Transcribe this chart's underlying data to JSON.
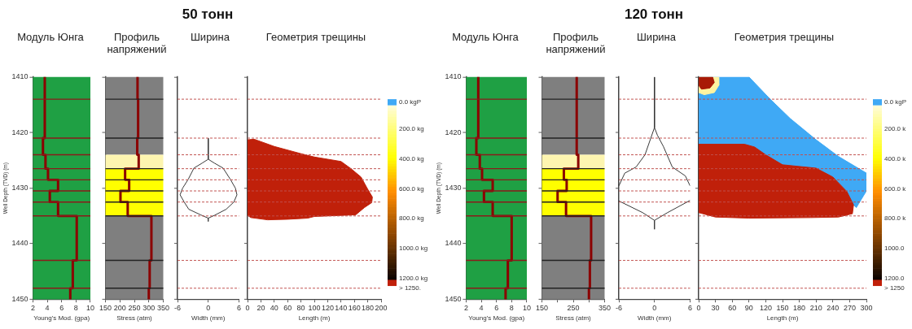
{
  "chart_data": [
    {
      "type": "line",
      "title": "Модуль Юнга",
      "xlabel": "Young's Mod. (gpa)",
      "ylabel": "Well Depth (TVD) (m)",
      "xlim": [
        2,
        10
      ],
      "xticks": [
        2,
        4,
        6,
        8,
        10
      ],
      "ylim": [
        1450,
        1410
      ],
      "yticks": [
        1410,
        1420,
        1430,
        1440,
        1450
      ],
      "grid": false,
      "legend": false,
      "series": [
        {
          "color": "#8b0000",
          "x": [
            3.65,
            3.65,
            3.4,
            3.4,
            3.75,
            3.75,
            4.1,
            4.1,
            5.5,
            5.5,
            4.35,
            4.35,
            5.5,
            5.5,
            8.1,
            8.1,
            7.55,
            7.55,
            7.2,
            7.2
          ],
          "values": [
            1410,
            1421,
            1421,
            1424,
            1424,
            1426.5,
            1426.5,
            1428.5,
            1428.5,
            1430.5,
            1430.5,
            1432.5,
            1432.5,
            1435,
            1435,
            1443,
            1443,
            1448,
            1448,
            1450
          ]
        }
      ],
      "bands": [
        {
          "axis": "y",
          "from": 1410,
          "to": 1450,
          "color": "#1fa044"
        }
      ],
      "ref_lines": [
        {
          "axis": "y",
          "value": 1414,
          "color": "#8b1a1a",
          "line_style": "solid"
        },
        {
          "axis": "y",
          "value": 1421,
          "color": "#8b1a1a",
          "line_style": "solid"
        },
        {
          "axis": "y",
          "value": 1424,
          "color": "#8b1a1a",
          "line_style": "solid"
        },
        {
          "axis": "y",
          "value": 1426.5,
          "color": "#8b1a1a",
          "line_style": "solid"
        },
        {
          "axis": "y",
          "value": 1428.5,
          "color": "#8b1a1a",
          "line_style": "solid"
        },
        {
          "axis": "y",
          "value": 1430.5,
          "color": "#8b1a1a",
          "line_style": "solid"
        },
        {
          "axis": "y",
          "value": 1432.5,
          "color": "#8b1a1a",
          "line_style": "solid"
        },
        {
          "axis": "y",
          "value": 1435,
          "color": "#8b1a1a",
          "line_style": "solid"
        },
        {
          "axis": "y",
          "value": 1443,
          "color": "#8b1a1a",
          "line_style": "solid"
        },
        {
          "axis": "y",
          "value": 1448,
          "color": "#8b1a1a",
          "line_style": "solid"
        }
      ]
    },
    {
      "type": "line",
      "title": "Профиль напряжений",
      "xlabel": "Stress (atm)",
      "xlim": [
        150,
        350
      ],
      "xticks": [
        150,
        200,
        250,
        300,
        350
      ],
      "ylim": [
        1450,
        1410
      ],
      "yticks": [
        1410,
        1420,
        1430,
        1440,
        1450
      ],
      "tick_labels": "x",
      "grid": false,
      "legend": false,
      "series": [
        {
          "color": "#8b0000",
          "x": [
            261,
            261,
            263,
            263,
            260,
            260,
            265,
            265,
            218,
            218,
            232,
            232,
            202,
            202,
            227,
            227,
            309,
            309,
            303,
            303,
            300,
            300
          ],
          "values": [
            1410,
            1414,
            1414,
            1421,
            1421,
            1424,
            1424,
            1426.5,
            1426.5,
            1428.5,
            1428.5,
            1430.5,
            1430.5,
            1432.5,
            1432.5,
            1435,
            1435,
            1443,
            1443,
            1448,
            1448,
            1450
          ]
        }
      ],
      "bands": [
        {
          "axis": "y",
          "from": 1410,
          "to": 1424,
          "color": "#7f7f7f"
        },
        {
          "axis": "y",
          "from": 1424,
          "to": 1426.5,
          "color": "#fdf5b0"
        },
        {
          "axis": "y",
          "from": 1426.5,
          "to": 1435,
          "color": "#ffff00"
        },
        {
          "axis": "y",
          "from": 1435,
          "to": 1450,
          "color": "#7f7f7f"
        }
      ],
      "ref_lines": [
        {
          "axis": "y",
          "value": 1414,
          "color": "#222222",
          "line_style": "solid"
        },
        {
          "axis": "y",
          "value": 1421,
          "color": "#222222",
          "line_style": "solid"
        },
        {
          "axis": "y",
          "value": 1426.5,
          "color": "#222222",
          "line_style": "solid"
        },
        {
          "axis": "y",
          "value": 1428.5,
          "color": "#222222",
          "line_style": "solid"
        },
        {
          "axis": "y",
          "value": 1430.5,
          "color": "#222222",
          "line_style": "solid"
        },
        {
          "axis": "y",
          "value": 1432.5,
          "color": "#222222",
          "line_style": "solid"
        },
        {
          "axis": "y",
          "value": 1435,
          "color": "#222222",
          "line_style": "solid"
        },
        {
          "axis": "y",
          "value": 1443,
          "color": "#222222",
          "line_style": "solid"
        },
        {
          "axis": "y",
          "value": 1448,
          "color": "#222222",
          "line_style": "solid"
        }
      ]
    },
    {
      "type": "line",
      "subtitle": "50 тонн",
      "title": "Ширина",
      "xlabel": "Width (mm)",
      "xlim": [
        -6,
        6
      ],
      "xticks": [
        -6,
        0,
        6
      ],
      "ylim": [
        1450,
        1410
      ],
      "yticks": [
        1410,
        1420,
        1430,
        1440,
        1450
      ],
      "tick_labels": "x",
      "grid": false,
      "legend": false,
      "series": [
        {
          "color": "#333333",
          "x": [
            0,
            0,
            1.2,
            2.9,
            4.3,
            5.3,
            5.6,
            5.0,
            3.5,
            1.2,
            0,
            0,
            0,
            -1.5,
            -3.8,
            -4.7,
            -5.5,
            -5.0,
            -3.9,
            -2.8,
            -1.2,
            0
          ],
          "values": [
            1421,
            1424.8,
            1425.5,
            1426.4,
            1428.4,
            1430,
            1431.2,
            1432.5,
            1433.8,
            1434.9,
            1435.4,
            1436,
            1435.4,
            1434.8,
            1433.8,
            1432.5,
            1431.2,
            1430,
            1428.4,
            1426.4,
            1425.5,
            1424.8
          ]
        }
      ],
      "ref_lines": [
        {
          "axis": "y",
          "value": 1414,
          "color": "#c0504d",
          "line_style": "dashed"
        },
        {
          "axis": "y",
          "value": 1421,
          "color": "#c0504d",
          "line_style": "dashed"
        },
        {
          "axis": "y",
          "value": 1424,
          "color": "#c0504d",
          "line_style": "dashed"
        },
        {
          "axis": "y",
          "value": 1426.5,
          "color": "#c0504d",
          "line_style": "dashed"
        },
        {
          "axis": "y",
          "value": 1428.5,
          "color": "#c0504d",
          "line_style": "dashed"
        },
        {
          "axis": "y",
          "value": 1430.5,
          "color": "#c0504d",
          "line_style": "dashed"
        },
        {
          "axis": "y",
          "value": 1432.5,
          "color": "#c0504d",
          "line_style": "dashed"
        },
        {
          "axis": "y",
          "value": 1435,
          "color": "#c0504d",
          "line_style": "dashed"
        },
        {
          "axis": "y",
          "value": 1443,
          "color": "#c0504d",
          "line_style": "dashed"
        },
        {
          "axis": "y",
          "value": 1448,
          "color": "#c0504d",
          "line_style": "dashed"
        }
      ]
    },
    {
      "type": "area",
      "title": "Геометрия трещины",
      "xlabel": "Length (m)",
      "xlim": [
        0,
        200
      ],
      "xticks": [
        0,
        20,
        40,
        60,
        80,
        100,
        120,
        140,
        160,
        180,
        200
      ],
      "ylim": [
        1450,
        1410
      ],
      "yticks": [
        1410,
        1420,
        1430,
        1440,
        1450
      ],
      "tick_labels": "x",
      "grid": false,
      "legend": false,
      "clim": [
        0,
        1250
      ],
      "cticks": [
        {
          "value": 0,
          "label": "0.0 kgP"
        },
        {
          "value": 200,
          "label": "200.0 kg"
        },
        {
          "value": 400,
          "label": "400.0 kg"
        },
        {
          "value": 600,
          "label": "600.0 kg"
        },
        {
          "value": 800,
          "label": "800.0 kg"
        },
        {
          "value": 1000,
          "label": "1000.0 kg"
        },
        {
          "value": 1200,
          "label": "1200.0 kg"
        },
        {
          "value": 1250,
          "label": "> 1250."
        }
      ],
      "series": [
        {
          "color": "#c0200a",
          "x": [
            0,
            10,
            40,
            80,
            100,
            120,
            140,
            155,
            170,
            180,
            187,
            186,
            175,
            162,
            100,
            90,
            60,
            30,
            5,
            0
          ],
          "values": [
            1421.3,
            1421.2,
            1422.5,
            1423.8,
            1424.4,
            1424.8,
            1425.2,
            1426.5,
            1428,
            1430.2,
            1431.6,
            1432.6,
            1433.5,
            1434.8,
            1435.1,
            1435.4,
            1435.6,
            1435.7,
            1435.3,
            1434.9
          ]
        }
      ],
      "ref_lines": [
        {
          "axis": "y",
          "value": 1414,
          "color": "#c0504d",
          "line_style": "dashed"
        },
        {
          "axis": "y",
          "value": 1421,
          "color": "#c0504d",
          "line_style": "dashed"
        },
        {
          "axis": "y",
          "value": 1424,
          "color": "#c0504d",
          "line_style": "dashed"
        },
        {
          "axis": "y",
          "value": 1426.5,
          "color": "#c0504d",
          "line_style": "dashed"
        },
        {
          "axis": "y",
          "value": 1428.5,
          "color": "#c0504d",
          "line_style": "dashed"
        },
        {
          "axis": "y",
          "value": 1430.5,
          "color": "#c0504d",
          "line_style": "dashed"
        },
        {
          "axis": "y",
          "value": 1432.5,
          "color": "#c0504d",
          "line_style": "dashed"
        },
        {
          "axis": "y",
          "value": 1435,
          "color": "#c0504d",
          "line_style": "dashed"
        },
        {
          "axis": "y",
          "value": 1443,
          "color": "#c0504d",
          "line_style": "dashed"
        },
        {
          "axis": "y",
          "value": 1448,
          "color": "#c0504d",
          "line_style": "dashed"
        }
      ]
    },
    {
      "type": "line",
      "title": "Модуль Юнга",
      "xlabel": "Young's Mod. (gpa)",
      "ylabel": "Well Depth (TVD) (m)",
      "xlim": [
        2,
        10
      ],
      "xticks": [
        2,
        4,
        6,
        8,
        10
      ],
      "ylim": [
        1450,
        1410
      ],
      "yticks": [
        1410,
        1420,
        1430,
        1440,
        1450
      ],
      "grid": false,
      "legend": false,
      "series": [
        {
          "color": "#8b0000",
          "x": [
            3.6,
            3.6,
            3.35,
            3.35,
            3.8,
            3.8,
            4.1,
            4.1,
            5.5,
            5.5,
            4.35,
            4.35,
            5.5,
            5.5,
            8.0,
            8.0,
            7.5,
            7.5,
            7.2,
            7.2
          ],
          "values": [
            1410,
            1421,
            1421,
            1424,
            1424,
            1426.5,
            1426.5,
            1428.5,
            1428.5,
            1430.5,
            1430.5,
            1432.5,
            1432.5,
            1435,
            1435,
            1443,
            1443,
            1448,
            1448,
            1450
          ]
        }
      ],
      "bands": [
        {
          "axis": "y",
          "from": 1410,
          "to": 1450,
          "color": "#1fa044"
        }
      ],
      "ref_lines": [
        {
          "axis": "y",
          "value": 1414,
          "color": "#8b1a1a",
          "line_style": "solid"
        },
        {
          "axis": "y",
          "value": 1421,
          "color": "#8b1a1a",
          "line_style": "solid"
        },
        {
          "axis": "y",
          "value": 1424,
          "color": "#8b1a1a",
          "line_style": "solid"
        },
        {
          "axis": "y",
          "value": 1426.5,
          "color": "#8b1a1a",
          "line_style": "solid"
        },
        {
          "axis": "y",
          "value": 1428.5,
          "color": "#8b1a1a",
          "line_style": "solid"
        },
        {
          "axis": "y",
          "value": 1430.5,
          "color": "#8b1a1a",
          "line_style": "solid"
        },
        {
          "axis": "y",
          "value": 1432.5,
          "color": "#8b1a1a",
          "line_style": "solid"
        },
        {
          "axis": "y",
          "value": 1435,
          "color": "#8b1a1a",
          "line_style": "solid"
        },
        {
          "axis": "y",
          "value": 1443,
          "color": "#8b1a1a",
          "line_style": "solid"
        },
        {
          "axis": "y",
          "value": 1448,
          "color": "#8b1a1a",
          "line_style": "solid"
        }
      ]
    },
    {
      "type": "line",
      "title": "Профиль напряжений",
      "xlabel": "Stress (atm)",
      "xlim": [
        150,
        350
      ],
      "xticks": [
        150,
        {
          "value": 200,
          "label": null
        },
        250,
        {
          "value": 300,
          "label": null
        },
        350
      ],
      "ylim": [
        1450,
        1410
      ],
      "yticks": [
        1410,
        1420,
        1430,
        1440,
        1450
      ],
      "tick_labels": "x",
      "grid": false,
      "legend": false,
      "series": [
        {
          "color": "#8b0000",
          "x": [
            261,
            261,
            266,
            266,
            220,
            220,
            229,
            229,
            200,
            200,
            227,
            227,
            307,
            307,
            303,
            303,
            300,
            300
          ],
          "values": [
            1410,
            1424,
            1424,
            1426.5,
            1426.5,
            1428.5,
            1428.5,
            1430.5,
            1430.5,
            1432.5,
            1432.5,
            1435,
            1435,
            1443,
            1443,
            1448,
            1448,
            1450
          ]
        }
      ],
      "bands": [
        {
          "axis": "y",
          "from": 1410,
          "to": 1424,
          "color": "#7f7f7f"
        },
        {
          "axis": "y",
          "from": 1424,
          "to": 1426.5,
          "color": "#fdf5b0"
        },
        {
          "axis": "y",
          "from": 1426.5,
          "to": 1435,
          "color": "#ffff00"
        },
        {
          "axis": "y",
          "from": 1435,
          "to": 1450,
          "color": "#7f7f7f"
        }
      ],
      "ref_lines": [
        {
          "axis": "y",
          "value": 1414,
          "color": "#222222",
          "line_style": "solid"
        },
        {
          "axis": "y",
          "value": 1421,
          "color": "#222222",
          "line_style": "solid"
        },
        {
          "axis": "y",
          "value": 1426.5,
          "color": "#222222",
          "line_style": "solid"
        },
        {
          "axis": "y",
          "value": 1428.5,
          "color": "#222222",
          "line_style": "solid"
        },
        {
          "axis": "y",
          "value": 1430.5,
          "color": "#222222",
          "line_style": "solid"
        },
        {
          "axis": "y",
          "value": 1432.5,
          "color": "#222222",
          "line_style": "solid"
        },
        {
          "axis": "y",
          "value": 1435,
          "color": "#222222",
          "line_style": "solid"
        },
        {
          "axis": "y",
          "value": 1443,
          "color": "#222222",
          "line_style": "solid"
        },
        {
          "axis": "y",
          "value": 1448,
          "color": "#222222",
          "line_style": "solid"
        }
      ]
    },
    {
      "type": "line",
      "subtitle": "120 тонн",
      "title": "Ширина",
      "xlabel": "Width (mm)",
      "xlim": [
        -6,
        6
      ],
      "xticks": [
        -6,
        0,
        6
      ],
      "ylim": [
        1450,
        1410
      ],
      "yticks": [
        1410,
        1420,
        1430,
        1440,
        1450
      ],
      "tick_labels": "x",
      "grid": false,
      "legend": false,
      "series": [
        {
          "color": "#333333",
          "x": [
            0,
            0,
            0.5,
            1.5,
            3,
            5.2,
            6
          ],
          "values": [
            1410,
            1419.1,
            1420.5,
            1422.5,
            1426.2,
            1427.8,
            1429.6
          ]
        },
        {
          "color": "#333333",
          "x": [
            6,
            2.2,
            0,
            0,
            0,
            -2,
            -6
          ],
          "values": [
            1432.2,
            1434.4,
            1435.8,
            1437.4,
            1435.8,
            1434.4,
            1432.3
          ]
        },
        {
          "color": "#333333",
          "x": [
            -6,
            -5,
            -3.1,
            -1.6,
            0
          ],
          "values": [
            1429.6,
            1427.3,
            1426.2,
            1424,
            1419.1
          ]
        }
      ],
      "ref_lines": [
        {
          "axis": "y",
          "value": 1414,
          "color": "#c0504d",
          "line_style": "dashed"
        },
        {
          "axis": "y",
          "value": 1421,
          "color": "#c0504d",
          "line_style": "dashed"
        },
        {
          "axis": "y",
          "value": 1424,
          "color": "#c0504d",
          "line_style": "dashed"
        },
        {
          "axis": "y",
          "value": 1426.5,
          "color": "#c0504d",
          "line_style": "dashed"
        },
        {
          "axis": "y",
          "value": 1428.5,
          "color": "#c0504d",
          "line_style": "dashed"
        },
        {
          "axis": "y",
          "value": 1430.5,
          "color": "#c0504d",
          "line_style": "dashed"
        },
        {
          "axis": "y",
          "value": 1432.5,
          "color": "#c0504d",
          "line_style": "dashed"
        },
        {
          "axis": "y",
          "value": 1435,
          "color": "#c0504d",
          "line_style": "dashed"
        },
        {
          "axis": "y",
          "value": 1443,
          "color": "#c0504d",
          "line_style": "dashed"
        },
        {
          "axis": "y",
          "value": 1448,
          "color": "#c0504d",
          "line_style": "dashed"
        }
      ]
    },
    {
      "type": "area",
      "title": "Геометрия трещины",
      "xlabel": "Length (m)",
      "xlim": [
        0,
        300
      ],
      "xticks": [
        0,
        30,
        60,
        90,
        120,
        150,
        180,
        210,
        240,
        270,
        300
      ],
      "ylim": [
        1450,
        1410
      ],
      "yticks": [
        1410,
        1420,
        1430,
        1440,
        1450
      ],
      "tick_labels": "x",
      "grid": false,
      "legend": false,
      "clim": [
        0,
        1250
      ],
      "cticks": [
        {
          "value": 0,
          "label": "0.0 kgP"
        },
        {
          "value": 200,
          "label": "200.0 k"
        },
        {
          "value": 400,
          "label": "400.0 k"
        },
        {
          "value": 600,
          "label": "600.0 k"
        },
        {
          "value": 800,
          "label": "800.0 k"
        },
        {
          "value": 1000,
          "label": "1000.0"
        },
        {
          "value": 1200,
          "label": "1200.0"
        },
        {
          "value": 1250,
          "label": "> 1250"
        }
      ],
      "series": [
        {
          "color": "#3fa9f5",
          "x": [
            0,
            90,
            128,
            164,
            210,
            250,
            300,
            300,
            282,
            277,
            265,
            240,
            210,
            150,
            120,
            100,
            82,
            0
          ],
          "values": [
            1410,
            1410,
            1414,
            1417.5,
            1421.3,
            1424.3,
            1427.3,
            1430.5,
            1433.5,
            1433,
            1430.6,
            1428,
            1426.4,
            1425.8,
            1424,
            1422.6,
            1422.1,
            1422.1
          ]
        },
        {
          "color": "#c0200a",
          "x": [
            0,
            82,
            100,
            120,
            150,
            210,
            240,
            265,
            277,
            275,
            250,
            200,
            90,
            30,
            0
          ],
          "values": [
            1422.1,
            1422.1,
            1422.6,
            1424,
            1425.8,
            1426.4,
            1428,
            1430.6,
            1433,
            1434.6,
            1435.2,
            1435.3,
            1435.4,
            1435.2,
            1434.4
          ]
        },
        {
          "color": "#fff3a0",
          "x": [
            0,
            35,
            36,
            28,
            10,
            0
          ],
          "values": [
            1410,
            1410,
            1411.5,
            1412.8,
            1413.2,
            1412.8
          ]
        },
        {
          "color": "#a81a06",
          "x": [
            0,
            25,
            28,
            20,
            5,
            0
          ],
          "values": [
            1410,
            1410,
            1411,
            1412,
            1412.2,
            1411.5
          ]
        }
      ],
      "ref_lines": [
        {
          "axis": "y",
          "value": 1414,
          "color": "#c0504d",
          "line_style": "dashed"
        },
        {
          "axis": "y",
          "value": 1421,
          "color": "#c0504d",
          "line_style": "dashed"
        },
        {
          "axis": "y",
          "value": 1424,
          "color": "#c0504d",
          "line_style": "dashed"
        },
        {
          "axis": "y",
          "value": 1426.5,
          "color": "#c0504d",
          "line_style": "dashed"
        },
        {
          "axis": "y",
          "value": 1428.5,
          "color": "#c0504d",
          "line_style": "dashed"
        },
        {
          "axis": "y",
          "value": 1430.5,
          "color": "#c0504d",
          "line_style": "dashed"
        },
        {
          "axis": "y",
          "value": 1432.5,
          "color": "#c0504d",
          "line_style": "dashed"
        },
        {
          "axis": "y",
          "value": 1435,
          "color": "#c0504d",
          "line_style": "dashed"
        },
        {
          "axis": "y",
          "value": 1443,
          "color": "#c0504d",
          "line_style": "dashed"
        },
        {
          "axis": "y",
          "value": 1448,
          "color": "#c0504d",
          "line_style": "dashed"
        }
      ]
    }
  ]
}
